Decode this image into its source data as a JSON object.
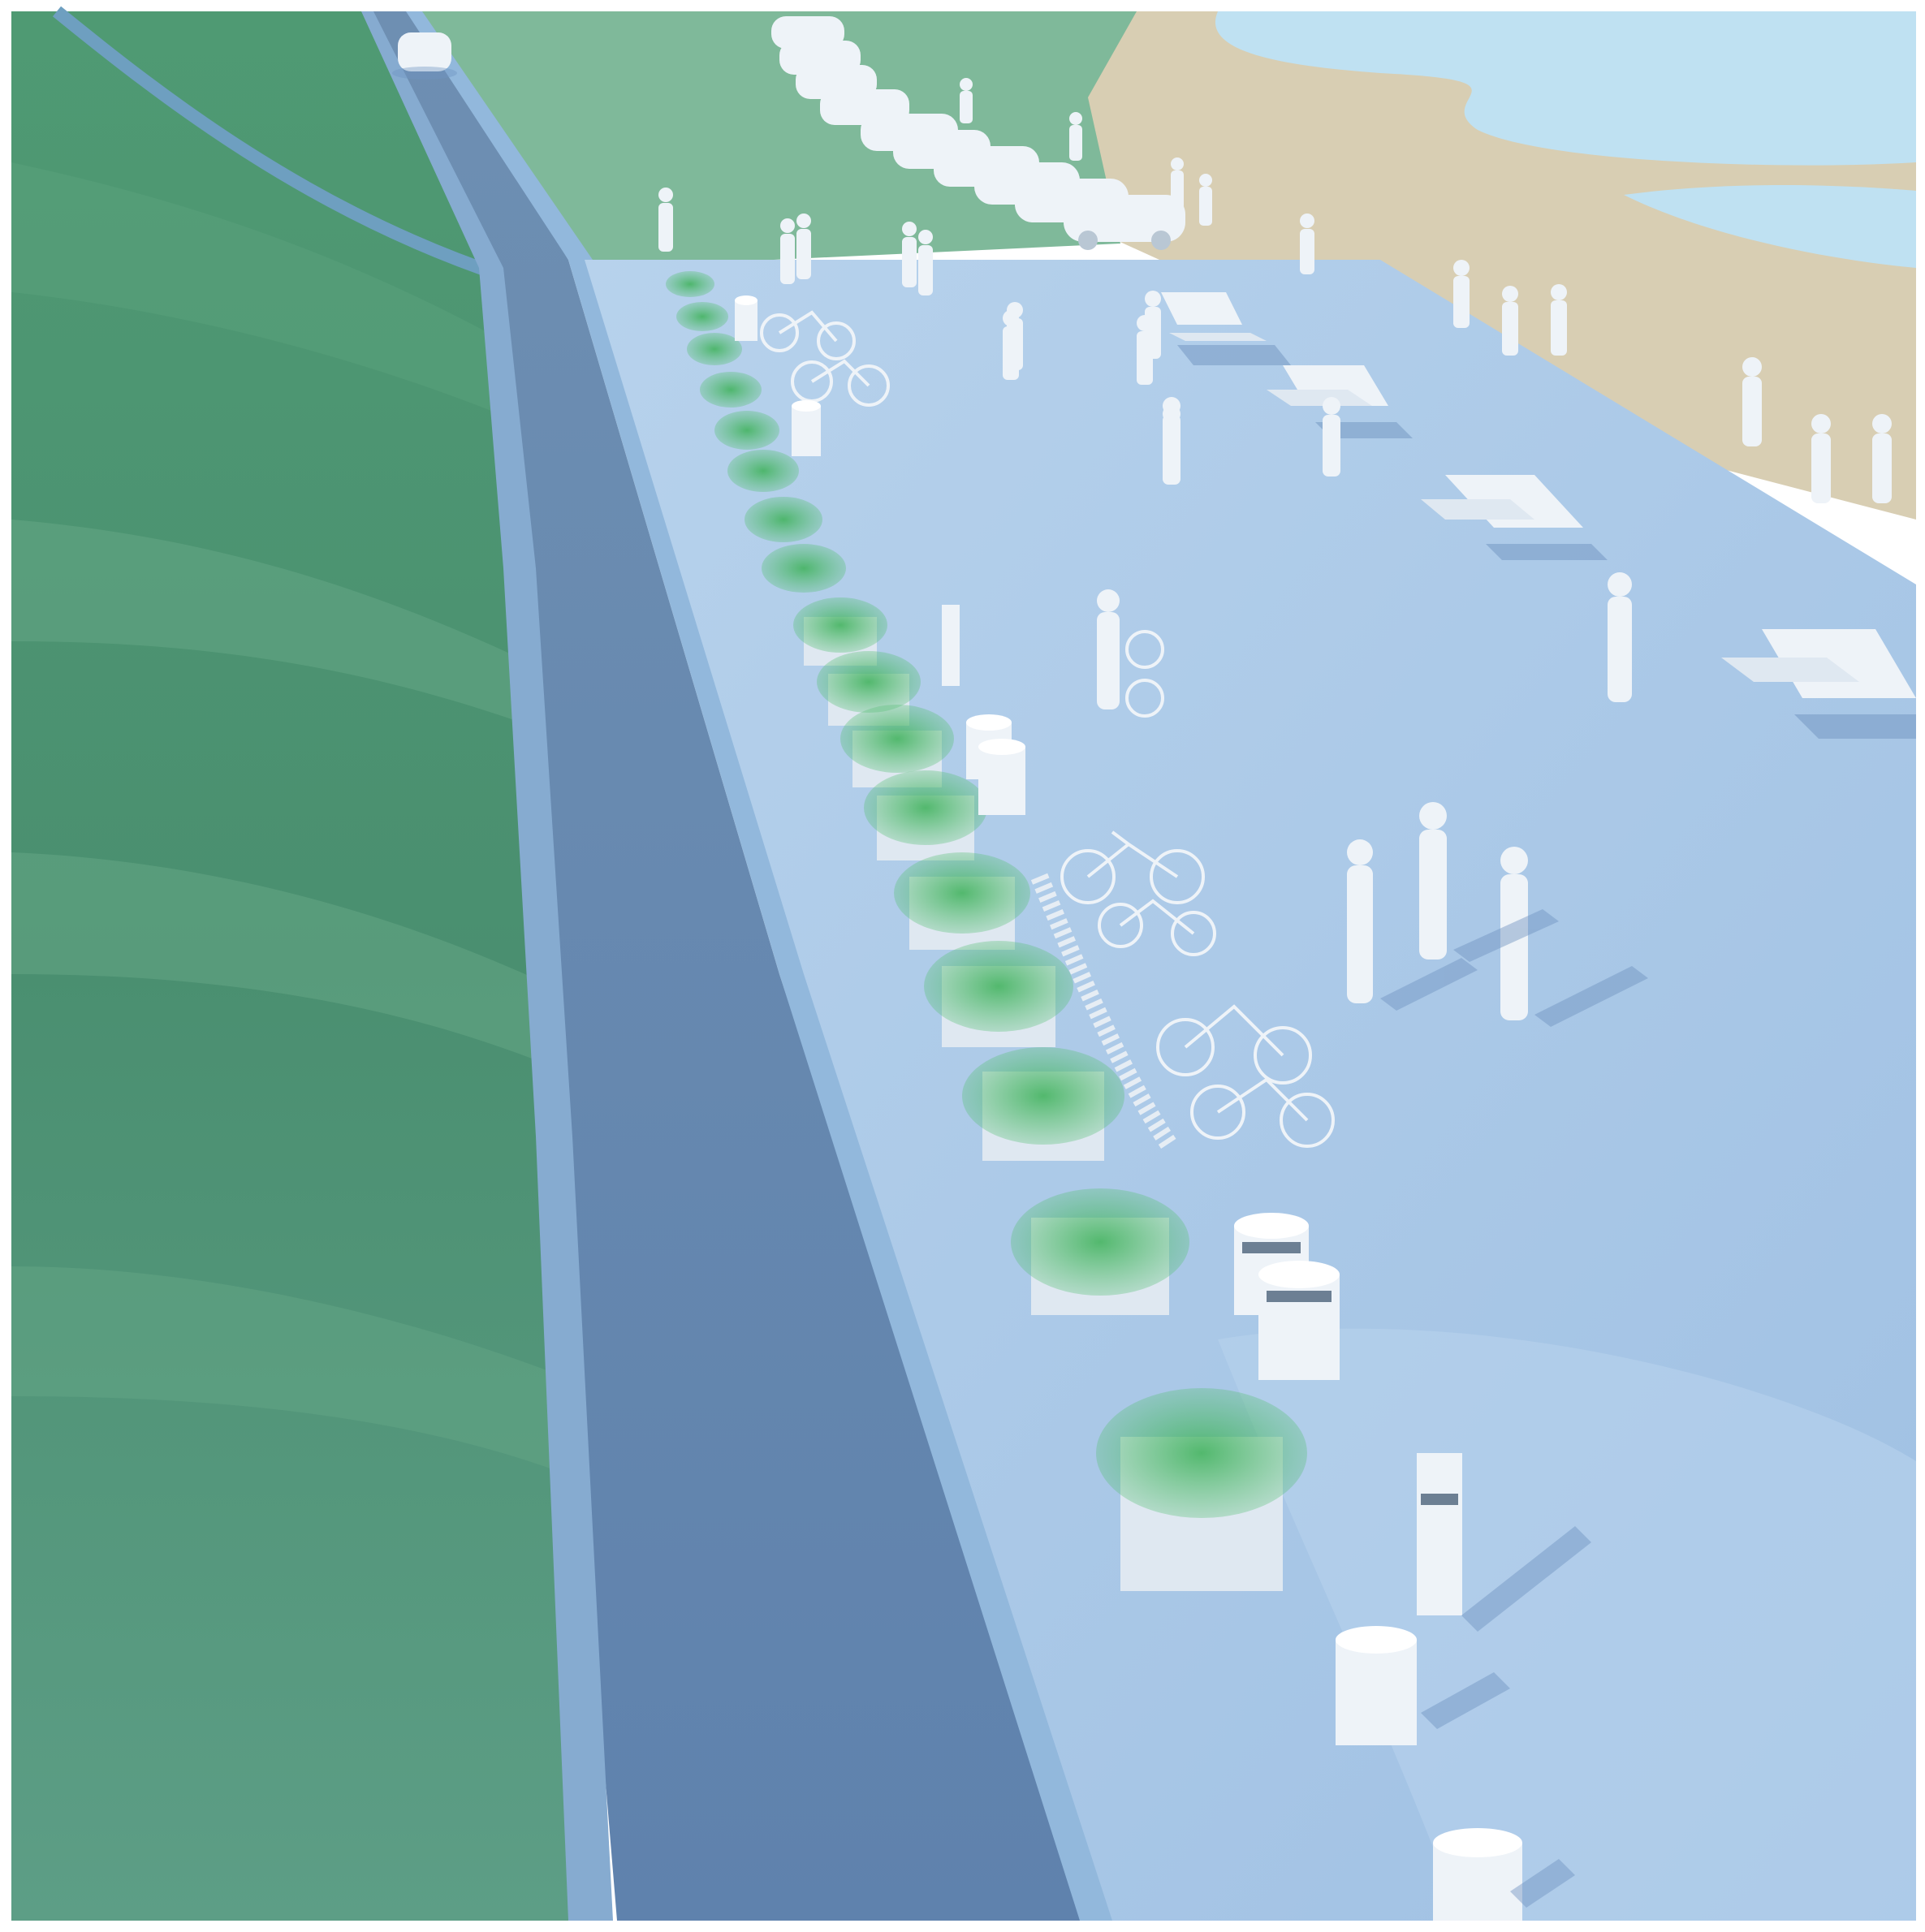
{
  "scene": {
    "kind": "architectural-rendering",
    "colors": {
      "frame": "#ffffff",
      "grass_light": "#8fc3a6",
      "grass_mid": "#5fa27e",
      "grass_dark": "#3f8a66",
      "road": "#5f86b0",
      "road_edge": "#8fb4d6",
      "plaza": "#a9c8e6",
      "plaza_light": "#c7dcf0",
      "sand": "#d8ceb3",
      "water": "#bfe1f2",
      "planter_green": "#3fae5e",
      "object_white": "#eef3f8",
      "shadow": "#6f93c0"
    },
    "object_types": [
      "car",
      "person",
      "bicycle",
      "picnic-table",
      "planter",
      "trash-bin",
      "bollard",
      "bike-rack"
    ]
  }
}
